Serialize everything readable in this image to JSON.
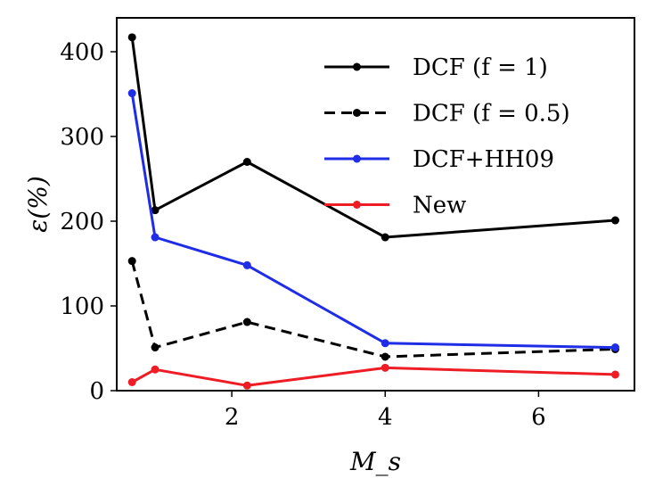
{
  "chart_data": {
    "type": "line",
    "title": "",
    "xlabel": "M_s",
    "ylabel": "ε(%)",
    "xlim": [
      0.5,
      7.25
    ],
    "ylim": [
      0,
      440
    ],
    "xticks": [
      2,
      4,
      6
    ],
    "yticks": [
      0,
      100,
      200,
      300,
      400
    ],
    "grid": false,
    "legend_position": "top-right",
    "series": [
      {
        "name": "DCF (f = 1)",
        "color": "#000000",
        "dash": "solid",
        "x": [
          0.7,
          1.0,
          2.2,
          4.0,
          7.0
        ],
        "y": [
          417,
          213,
          270,
          181,
          201
        ]
      },
      {
        "name": "DCF (f = 0.5)",
        "color": "#000000",
        "dash": "dashed",
        "x": [
          0.7,
          1.0,
          2.2,
          4.0,
          7.0
        ],
        "y": [
          153,
          51,
          81,
          40,
          49
        ]
      },
      {
        "name": "DCF+HH09",
        "color": "#1f2de6",
        "dash": "solid",
        "x": [
          0.7,
          1.0,
          2.2,
          4.0,
          7.0
        ],
        "y": [
          351,
          181,
          148,
          56,
          51
        ]
      },
      {
        "name": "New",
        "color": "#ee1c25",
        "dash": "solid",
        "x": [
          0.7,
          1.0,
          2.2,
          4.0,
          7.0
        ],
        "y": [
          10,
          25,
          6,
          27,
          19
        ]
      }
    ]
  }
}
